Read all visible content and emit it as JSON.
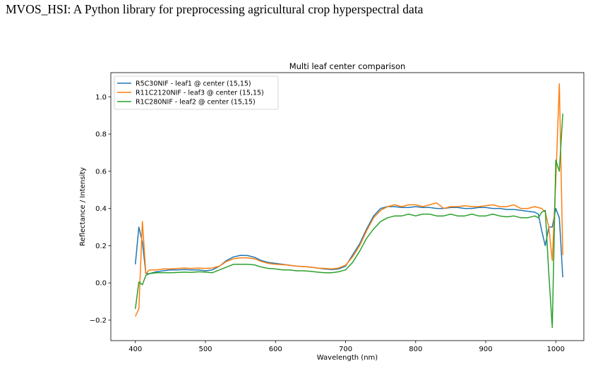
{
  "page": {
    "heading": "MVOS_HSI: A Python library for preprocessing agricultural crop hyperspectral data"
  },
  "chart_data": {
    "type": "line",
    "title": "Multi leaf center comparison",
    "xlabel": "Wavelength (nm)",
    "ylabel": "Reflectance / Intensity",
    "xlim": [
      365,
      1040
    ],
    "ylim": [
      -0.31,
      1.13
    ],
    "xticks": [
      400,
      500,
      600,
      700,
      800,
      900,
      1000
    ],
    "yticks": [
      -0.2,
      0.0,
      0.2,
      0.4,
      0.6,
      0.8,
      1.0
    ],
    "ytick_labels": [
      "−0.2",
      "0.0",
      "0.2",
      "0.4",
      "0.6",
      "0.8",
      "1.0"
    ],
    "grid": false,
    "legend_position": "top-left",
    "series": [
      {
        "name": "R5C30NIF - leaf1 @ center (15,15)",
        "color": "#1f77b4",
        "points": [
          [
            400,
            0.1
          ],
          [
            405,
            0.3
          ],
          [
            410,
            0.22
          ],
          [
            415,
            0.05
          ],
          [
            420,
            0.05
          ],
          [
            430,
            0.06
          ],
          [
            440,
            0.065
          ],
          [
            450,
            0.07
          ],
          [
            460,
            0.07
          ],
          [
            470,
            0.072
          ],
          [
            480,
            0.07
          ],
          [
            490,
            0.07
          ],
          [
            500,
            0.065
          ],
          [
            510,
            0.07
          ],
          [
            520,
            0.09
          ],
          [
            530,
            0.12
          ],
          [
            540,
            0.14
          ],
          [
            550,
            0.148
          ],
          [
            560,
            0.147
          ],
          [
            570,
            0.138
          ],
          [
            580,
            0.12
          ],
          [
            590,
            0.11
          ],
          [
            600,
            0.105
          ],
          [
            610,
            0.1
          ],
          [
            620,
            0.095
          ],
          [
            630,
            0.09
          ],
          [
            640,
            0.088
          ],
          [
            650,
            0.085
          ],
          [
            660,
            0.08
          ],
          [
            670,
            0.075
          ],
          [
            680,
            0.072
          ],
          [
            690,
            0.075
          ],
          [
            700,
            0.09
          ],
          [
            710,
            0.15
          ],
          [
            720,
            0.21
          ],
          [
            730,
            0.29
          ],
          [
            740,
            0.36
          ],
          [
            750,
            0.4
          ],
          [
            760,
            0.41
          ],
          [
            770,
            0.41
          ],
          [
            780,
            0.405
          ],
          [
            790,
            0.405
          ],
          [
            800,
            0.41
          ],
          [
            810,
            0.405
          ],
          [
            820,
            0.405
          ],
          [
            830,
            0.4
          ],
          [
            840,
            0.4
          ],
          [
            850,
            0.405
          ],
          [
            860,
            0.405
          ],
          [
            870,
            0.4
          ],
          [
            880,
            0.4
          ],
          [
            890,
            0.405
          ],
          [
            900,
            0.405
          ],
          [
            910,
            0.4
          ],
          [
            920,
            0.4
          ],
          [
            930,
            0.395
          ],
          [
            940,
            0.395
          ],
          [
            950,
            0.39
          ],
          [
            960,
            0.385
          ],
          [
            970,
            0.38
          ],
          [
            975,
            0.37
          ],
          [
            980,
            0.28
          ],
          [
            985,
            0.2
          ],
          [
            990,
            0.3
          ],
          [
            995,
            0.3
          ],
          [
            1000,
            0.4
          ],
          [
            1005,
            0.35
          ],
          [
            1010,
            0.03
          ]
        ]
      },
      {
        "name": "R11C2120NIF - leaf3 @ center (15,15)",
        "color": "#ff7f0e",
        "points": [
          [
            400,
            -0.18
          ],
          [
            405,
            -0.14
          ],
          [
            410,
            0.33
          ],
          [
            415,
            0.05
          ],
          [
            420,
            0.07
          ],
          [
            430,
            0.07
          ],
          [
            440,
            0.075
          ],
          [
            450,
            0.075
          ],
          [
            460,
            0.078
          ],
          [
            470,
            0.08
          ],
          [
            480,
            0.078
          ],
          [
            490,
            0.08
          ],
          [
            500,
            0.078
          ],
          [
            510,
            0.08
          ],
          [
            520,
            0.09
          ],
          [
            530,
            0.115
          ],
          [
            540,
            0.13
          ],
          [
            550,
            0.135
          ],
          [
            560,
            0.135
          ],
          [
            570,
            0.13
          ],
          [
            580,
            0.115
          ],
          [
            590,
            0.105
          ],
          [
            600,
            0.1
          ],
          [
            610,
            0.098
          ],
          [
            620,
            0.095
          ],
          [
            630,
            0.09
          ],
          [
            640,
            0.088
          ],
          [
            650,
            0.085
          ],
          [
            660,
            0.08
          ],
          [
            670,
            0.078
          ],
          [
            680,
            0.075
          ],
          [
            690,
            0.08
          ],
          [
            700,
            0.095
          ],
          [
            710,
            0.14
          ],
          [
            720,
            0.2
          ],
          [
            730,
            0.28
          ],
          [
            740,
            0.35
          ],
          [
            750,
            0.39
          ],
          [
            760,
            0.41
          ],
          [
            770,
            0.42
          ],
          [
            780,
            0.41
          ],
          [
            790,
            0.42
          ],
          [
            800,
            0.42
          ],
          [
            810,
            0.41
          ],
          [
            820,
            0.42
          ],
          [
            830,
            0.43
          ],
          [
            840,
            0.4
          ],
          [
            850,
            0.41
          ],
          [
            860,
            0.41
          ],
          [
            870,
            0.415
          ],
          [
            880,
            0.41
          ],
          [
            890,
            0.41
          ],
          [
            900,
            0.415
          ],
          [
            910,
            0.42
          ],
          [
            920,
            0.41
          ],
          [
            930,
            0.41
          ],
          [
            940,
            0.42
          ],
          [
            950,
            0.4
          ],
          [
            960,
            0.4
          ],
          [
            970,
            0.41
          ],
          [
            980,
            0.4
          ],
          [
            985,
            0.38
          ],
          [
            990,
            0.3
          ],
          [
            995,
            0.12
          ],
          [
            1000,
            0.55
          ],
          [
            1005,
            1.07
          ],
          [
            1010,
            0.15
          ]
        ]
      },
      {
        "name": "R1C280NIF - leaf2 @ center (15,15)",
        "color": "#2ca02c",
        "points": [
          [
            400,
            -0.14
          ],
          [
            405,
            0.005
          ],
          [
            410,
            -0.01
          ],
          [
            415,
            0.04
          ],
          [
            420,
            0.05
          ],
          [
            430,
            0.055
          ],
          [
            440,
            0.055
          ],
          [
            450,
            0.055
          ],
          [
            460,
            0.056
          ],
          [
            470,
            0.058
          ],
          [
            480,
            0.057
          ],
          [
            490,
            0.06
          ],
          [
            500,
            0.058
          ],
          [
            510,
            0.055
          ],
          [
            520,
            0.07
          ],
          [
            530,
            0.085
          ],
          [
            540,
            0.1
          ],
          [
            550,
            0.1
          ],
          [
            560,
            0.1
          ],
          [
            570,
            0.097
          ],
          [
            580,
            0.085
          ],
          [
            590,
            0.078
          ],
          [
            600,
            0.075
          ],
          [
            610,
            0.07
          ],
          [
            620,
            0.07
          ],
          [
            630,
            0.065
          ],
          [
            640,
            0.065
          ],
          [
            650,
            0.062
          ],
          [
            660,
            0.058
          ],
          [
            670,
            0.055
          ],
          [
            680,
            0.055
          ],
          [
            690,
            0.06
          ],
          [
            700,
            0.07
          ],
          [
            710,
            0.11
          ],
          [
            720,
            0.17
          ],
          [
            730,
            0.24
          ],
          [
            740,
            0.29
          ],
          [
            750,
            0.33
          ],
          [
            760,
            0.35
          ],
          [
            770,
            0.36
          ],
          [
            780,
            0.36
          ],
          [
            790,
            0.37
          ],
          [
            800,
            0.36
          ],
          [
            810,
            0.37
          ],
          [
            820,
            0.37
          ],
          [
            830,
            0.36
          ],
          [
            840,
            0.36
          ],
          [
            850,
            0.37
          ],
          [
            860,
            0.36
          ],
          [
            870,
            0.36
          ],
          [
            880,
            0.37
          ],
          [
            890,
            0.36
          ],
          [
            900,
            0.36
          ],
          [
            910,
            0.37
          ],
          [
            920,
            0.36
          ],
          [
            930,
            0.355
          ],
          [
            940,
            0.36
          ],
          [
            950,
            0.35
          ],
          [
            960,
            0.35
          ],
          [
            970,
            0.36
          ],
          [
            975,
            0.35
          ],
          [
            980,
            0.38
          ],
          [
            985,
            0.39
          ],
          [
            990,
            0.05
          ],
          [
            995,
            -0.24
          ],
          [
            1000,
            0.66
          ],
          [
            1005,
            0.6
          ],
          [
            1010,
            0.91
          ]
        ]
      }
    ]
  }
}
